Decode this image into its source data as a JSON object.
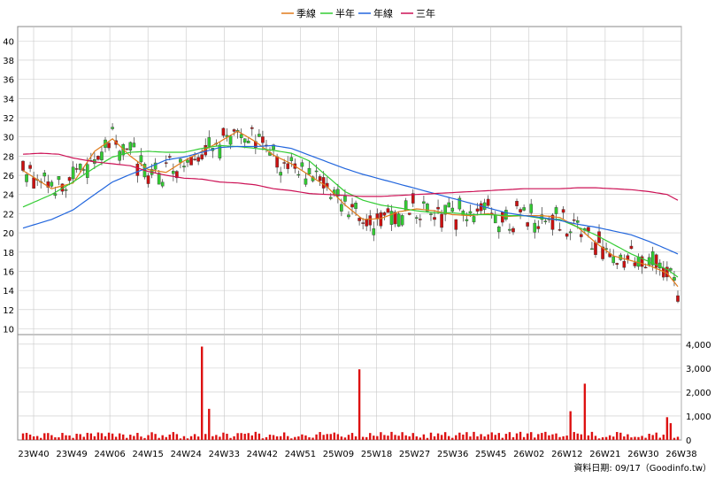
{
  "chart_data": {
    "type": "candlestick",
    "legend": [
      {
        "name": "季線",
        "color": "#e07b1a"
      },
      {
        "name": "半年",
        "color": "#33cc33"
      },
      {
        "name": "年線",
        "color": "#2266dd"
      },
      {
        "name": "三年",
        "color": "#cc1155"
      }
    ],
    "price_axis": {
      "min": 10,
      "max": 40,
      "ticks": [
        "10",
        "12",
        "14",
        "16",
        "18",
        "20",
        "22",
        "24",
        "26",
        "28",
        "30",
        "32",
        "34",
        "36",
        "38",
        "40"
      ]
    },
    "volume_axis": {
      "min": 0,
      "max": 4000,
      "ticks": [
        "0",
        "1,000",
        "2,000",
        "3,000",
        "4,000"
      ]
    },
    "x_ticks": [
      "23W40",
      "23W49",
      "24W06",
      "24W15",
      "24W24",
      "24W33",
      "24W42",
      "24W51",
      "25W09",
      "25W18",
      "25W27",
      "25W36",
      "25W45",
      "26W02",
      "26W12",
      "26W21",
      "26W30",
      "26W38"
    ],
    "source_note": "資料日期: 09/17（Goodinfo.tw）",
    "colors": {
      "up": "#33cc33",
      "down": "#cc1111",
      "volume": "#dd1111",
      "grid": "#c8c8c8"
    },
    "ma_series": [
      {
        "name": "季線",
        "points": [
          [
            0,
            26.5
          ],
          [
            8,
            24.6
          ],
          [
            14,
            25.2
          ],
          [
            20,
            28.5
          ],
          [
            25,
            29.8
          ],
          [
            30,
            28
          ],
          [
            35,
            26.6
          ],
          [
            40,
            26.3
          ],
          [
            45,
            27.5
          ],
          [
            50,
            28.5
          ],
          [
            55,
            29.5
          ],
          [
            60,
            30.6
          ],
          [
            65,
            29.5
          ],
          [
            70,
            28.1
          ],
          [
            75,
            27.2
          ],
          [
            80,
            26
          ],
          [
            85,
            24.8
          ],
          [
            90,
            22.9
          ],
          [
            95,
            21.4
          ],
          [
            100,
            21.5
          ],
          [
            105,
            22.2
          ],
          [
            110,
            22.5
          ],
          [
            115,
            22.3
          ],
          [
            120,
            21.9
          ],
          [
            125,
            21.8
          ],
          [
            130,
            22
          ],
          [
            135,
            21.7
          ],
          [
            140,
            21.8
          ],
          [
            145,
            21.8
          ],
          [
            150,
            21.6
          ],
          [
            155,
            20.6
          ],
          [
            160,
            19
          ],
          [
            165,
            17.6
          ],
          [
            170,
            17.1
          ],
          [
            175,
            16.6
          ],
          [
            180,
            15.8
          ],
          [
            183,
            14.4
          ]
        ]
      },
      {
        "name": "半年",
        "points": [
          [
            0,
            22.7
          ],
          [
            8,
            24
          ],
          [
            14,
            25.3
          ],
          [
            20,
            26.8
          ],
          [
            25,
            27.9
          ],
          [
            30,
            28.4
          ],
          [
            35,
            28.5
          ],
          [
            40,
            28.4
          ],
          [
            45,
            28.4
          ],
          [
            50,
            28.8
          ],
          [
            55,
            29.1
          ],
          [
            60,
            29
          ],
          [
            65,
            28.8
          ],
          [
            70,
            28.6
          ],
          [
            75,
            28.3
          ],
          [
            80,
            27.5
          ],
          [
            85,
            25.9
          ],
          [
            90,
            24.3
          ],
          [
            95,
            23.4
          ],
          [
            100,
            22.9
          ],
          [
            105,
            22.6
          ],
          [
            110,
            22.3
          ],
          [
            115,
            22.1
          ],
          [
            120,
            22.1
          ],
          [
            125,
            21.9
          ],
          [
            130,
            21.9
          ],
          [
            135,
            21.8
          ],
          [
            140,
            21.8
          ],
          [
            145,
            21.5
          ],
          [
            150,
            21.4
          ],
          [
            155,
            20.6
          ],
          [
            160,
            19.8
          ],
          [
            165,
            18.8
          ],
          [
            170,
            17.8
          ],
          [
            175,
            17
          ],
          [
            180,
            16.2
          ],
          [
            183,
            15.4
          ]
        ]
      },
      {
        "name": "年線",
        "points": [
          [
            0,
            20.5
          ],
          [
            8,
            21.4
          ],
          [
            14,
            22.4
          ],
          [
            20,
            24
          ],
          [
            25,
            25.3
          ],
          [
            30,
            26.1
          ],
          [
            35,
            26.8
          ],
          [
            40,
            27.6
          ],
          [
            45,
            27.9
          ],
          [
            50,
            28.4
          ],
          [
            55,
            28.9
          ],
          [
            60,
            29
          ],
          [
            65,
            29
          ],
          [
            70,
            29.1
          ],
          [
            75,
            28.8
          ],
          [
            80,
            28.1
          ],
          [
            85,
            27.4
          ],
          [
            90,
            26.7
          ],
          [
            95,
            26.1
          ],
          [
            100,
            25.6
          ],
          [
            105,
            25.1
          ],
          [
            110,
            24.6
          ],
          [
            115,
            24.1
          ],
          [
            120,
            23.6
          ],
          [
            125,
            23.1
          ],
          [
            130,
            22.6
          ],
          [
            135,
            22.1
          ],
          [
            140,
            21.8
          ],
          [
            145,
            21.6
          ],
          [
            150,
            21.3
          ],
          [
            155,
            20.9
          ],
          [
            160,
            20.6
          ],
          [
            165,
            20.2
          ],
          [
            170,
            19.8
          ],
          [
            175,
            19.1
          ],
          [
            180,
            18.3
          ],
          [
            183,
            17.8
          ]
        ]
      },
      {
        "name": "三年",
        "points": [
          [
            0,
            28.2
          ],
          [
            5,
            28.3
          ],
          [
            10,
            28.2
          ],
          [
            14,
            27.8
          ],
          [
            20,
            27.4
          ],
          [
            25,
            27.2
          ],
          [
            30,
            27
          ],
          [
            35,
            26.4
          ],
          [
            40,
            26
          ],
          [
            45,
            25.7
          ],
          [
            50,
            25.6
          ],
          [
            55,
            25.3
          ],
          [
            60,
            25.2
          ],
          [
            65,
            25
          ],
          [
            70,
            24.6
          ],
          [
            75,
            24.4
          ],
          [
            80,
            24.1
          ],
          [
            85,
            24
          ],
          [
            90,
            23.9
          ],
          [
            95,
            23.8
          ],
          [
            100,
            23.8
          ],
          [
            105,
            23.9
          ],
          [
            110,
            24
          ],
          [
            115,
            24.1
          ],
          [
            120,
            24.2
          ],
          [
            125,
            24.3
          ],
          [
            130,
            24.4
          ],
          [
            135,
            24.5
          ],
          [
            140,
            24.6
          ],
          [
            145,
            24.6
          ],
          [
            150,
            24.6
          ],
          [
            155,
            24.7
          ],
          [
            160,
            24.7
          ],
          [
            165,
            24.6
          ],
          [
            170,
            24.5
          ],
          [
            175,
            24.3
          ],
          [
            180,
            24
          ],
          [
            183,
            23.4
          ]
        ]
      }
    ],
    "volume_spikes": [
      [
        50,
        3900
      ],
      [
        52,
        1300
      ],
      [
        94,
        2950
      ],
      [
        153,
        1200
      ],
      [
        157,
        2350
      ],
      [
        180,
        950
      ],
      [
        181,
        700
      ]
    ]
  }
}
